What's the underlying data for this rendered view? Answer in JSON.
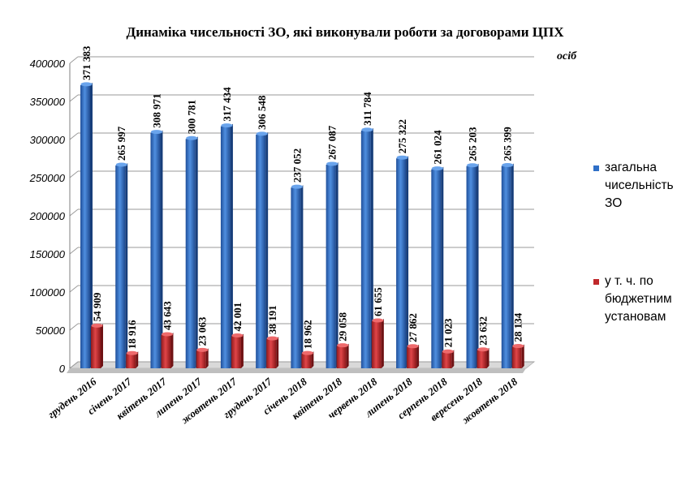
{
  "chart_data": {
    "type": "bar",
    "title": "Динаміка чисельності ЗО, які виконували роботи за договорами ЦПХ",
    "unit_label": "осіб",
    "categories": [
      "грудень 2016",
      "січень 2017",
      "квітень 2017",
      "липень 2017",
      "жовтень 2017",
      "грудень 2017",
      "січень 2018",
      "квітень 2018",
      "червень 2018",
      "липень 2018",
      "серпень 2018",
      "вересень 2018",
      "жовтень 2018"
    ],
    "series": [
      {
        "name": "загальна чисельність ЗО",
        "color": "#2f6fc7",
        "values": [
          371383,
          265997,
          308971,
          300781,
          317434,
          306548,
          237052,
          267087,
          311784,
          275322,
          261024,
          265203,
          265399
        ],
        "labels": [
          "371 383",
          "265 997",
          "308 971",
          "300 781",
          "317 434",
          "306 548",
          "237 052",
          "267 087",
          "311 784",
          "275 322",
          "261 024",
          "265 203",
          "265 399"
        ]
      },
      {
        "name": "у т. ч. по бюджетним установам",
        "color": "#c0282b",
        "values": [
          54909,
          18916,
          43643,
          23063,
          42001,
          38191,
          18962,
          29058,
          61655,
          27862,
          21023,
          23632,
          28134
        ],
        "labels": [
          "54 909",
          "18 916",
          "43 643",
          "23 063",
          "42 001",
          "38 191",
          "18 962",
          "29 058",
          "61 655",
          "27 862",
          "21 023",
          "23 632",
          "28 134"
        ]
      }
    ],
    "yticks": [
      "0",
      "50000",
      "100000",
      "150000",
      "200000",
      "250000",
      "300000",
      "350000",
      "400000"
    ],
    "ylim": [
      0,
      400000
    ],
    "grid": true,
    "legend_position": "right"
  },
  "legend": {
    "series1": "загальна чисельність ЗО",
    "series2": "у т. ч. по бюджетним установам"
  }
}
